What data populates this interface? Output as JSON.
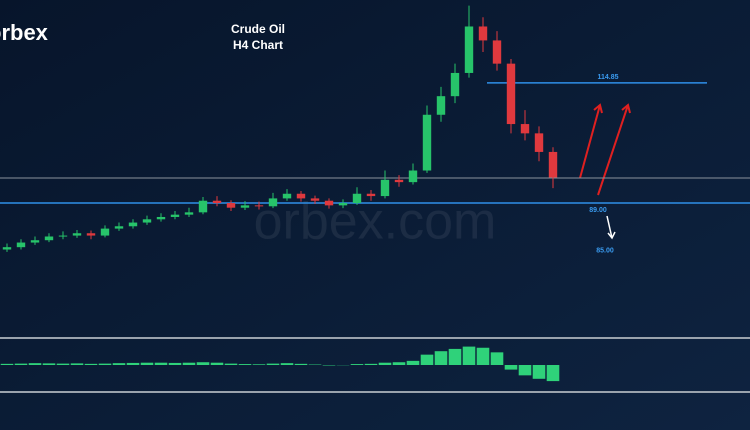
{
  "chart_data": {
    "type": "candlestick",
    "title": "Crude Oil",
    "subtitle": "H4 Chart",
    "logo": "orbex",
    "watermark": "orbex.com",
    "open": [
      79,
      79.5,
      80.5,
      81,
      81.8,
      82,
      82.5,
      82,
      83.5,
      84,
      84.8,
      85.5,
      86,
      86.5,
      87,
      89.5,
      89,
      88,
      88.5,
      88.3,
      90,
      91,
      90,
      89.5,
      88.5,
      89,
      91,
      90.5,
      94,
      93.5,
      96,
      108,
      112,
      117,
      127,
      124,
      119,
      106,
      104,
      100
    ],
    "high": [
      80.3,
      81.2,
      81.8,
      82.5,
      82.9,
      83.2,
      83.1,
      84.2,
      84.8,
      85.5,
      86.3,
      86.8,
      87.3,
      88,
      90.3,
      90.5,
      89.6,
      89.4,
      89.3,
      91.2,
      92,
      91.6,
      90.6,
      90,
      89.8,
      92.4,
      91.8,
      96,
      95,
      97.5,
      110,
      114,
      119,
      131.5,
      129,
      126,
      120,
      109,
      105.5,
      101
    ],
    "low": [
      78.5,
      79,
      80,
      80.6,
      81.2,
      81.5,
      81.2,
      81.6,
      83,
      83.5,
      84.3,
      85,
      85.5,
      86,
      86.6,
      88.3,
      87.3,
      87.5,
      87.6,
      87.9,
      89.5,
      89.3,
      88.8,
      87.8,
      87.9,
      88.6,
      89.5,
      90,
      92.5,
      93,
      95.5,
      106.5,
      110.5,
      116,
      121.5,
      117.5,
      104,
      102.5,
      98,
      92.2
    ],
    "close": [
      79.5,
      80.5,
      81,
      81.8,
      82,
      82.5,
      82,
      83.5,
      84,
      84.8,
      85.5,
      86,
      86.5,
      87,
      89.5,
      89,
      88,
      88.5,
      88.3,
      90,
      91,
      90,
      89.5,
      88.5,
      89,
      91,
      90.5,
      94,
      93.5,
      96,
      108,
      112,
      117,
      127,
      124,
      119,
      106,
      104,
      100,
      94.5
    ],
    "up_color": "#27c46a",
    "down_color": "#e0393e",
    "ylim": [
      60.6,
      132.7
    ],
    "reference_line": 94.4,
    "annotations": [
      {
        "value": 114.85,
        "label": "114.85"
      },
      {
        "value": 89,
        "label": "89.00"
      },
      {
        "value": 85,
        "label": "85.00"
      }
    ],
    "histogram": {
      "values": [
        0.05,
        0.06,
        0.08,
        0.07,
        0.06,
        0.07,
        0.05,
        0.06,
        0.08,
        0.09,
        0.1,
        0.1,
        0.09,
        0.1,
        0.12,
        0.1,
        0.06,
        0.04,
        0.03,
        0.06,
        0.08,
        0.05,
        0.02,
        -0.02,
        -0.01,
        0.04,
        0.05,
        0.1,
        0.12,
        0.18,
        0.45,
        0.6,
        0.7,
        0.8,
        0.75,
        0.55,
        -0.2,
        -0.45,
        -0.6,
        -0.7
      ],
      "ylim": [
        -1,
        1
      ],
      "color": "#2fd27a"
    }
  }
}
